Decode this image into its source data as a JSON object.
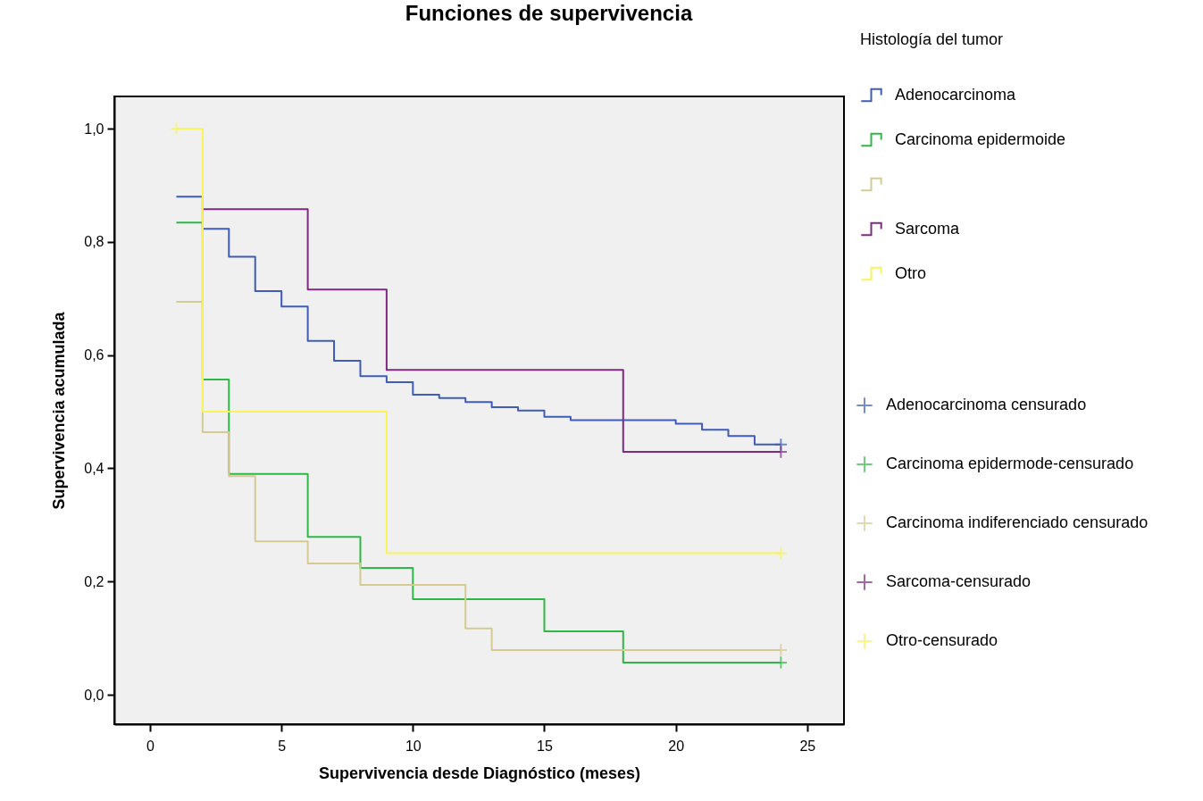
{
  "chart_data": {
    "type": "step",
    "title": "Funciones de supervivencia",
    "xlabel": "Supervivencia desde Diagnóstico (meses)",
    "ylabel": "Supervivencia acumulada",
    "legend_title": "Histología del tumor",
    "xlim": [
      -1.36,
      26.4
    ],
    "xticks": [
      0,
      5,
      10,
      15,
      20,
      25
    ],
    "ylim": [
      -0.052,
      1.057
    ],
    "yticks": [
      {
        "value": 0,
        "label": "0,0"
      },
      {
        "value": 0.2,
        "label": "0,2"
      },
      {
        "value": 0.4,
        "label": "0,4"
      },
      {
        "value": 0.6,
        "label": "0,6"
      },
      {
        "value": 0.8,
        "label": "0,8"
      },
      {
        "value": 1,
        "label": "1,0"
      }
    ],
    "grid": false,
    "legend": "right",
    "series": [
      {
        "name": "Adenocarcinoma",
        "color": "#3e5cb8",
        "x": [
          1,
          2,
          3,
          4,
          5,
          6,
          7,
          8,
          9,
          10,
          11,
          12,
          13,
          14,
          15,
          16,
          20,
          21,
          22,
          23,
          24
        ],
        "values": [
          0.88,
          0.823,
          0.774,
          0.713,
          0.686,
          0.625,
          0.59,
          0.563,
          0.552,
          0.53,
          0.524,
          0.517,
          0.508,
          0.502,
          0.491,
          0.485,
          0.479,
          0.468,
          0.457,
          0.442,
          0.442
        ]
      },
      {
        "name": "Carcinoma epidermoide",
        "color": "#2eb845",
        "x": [
          1,
          2,
          3,
          6,
          8,
          10,
          15,
          18,
          24
        ],
        "values": [
          0.834,
          0.557,
          0.39,
          0.279,
          0.224,
          0.169,
          0.112,
          0.057,
          0.057
        ]
      },
      {
        "name": null,
        "color": "#d4cb92",
        "x": [
          1,
          2,
          3,
          4,
          6,
          8,
          12,
          13,
          24
        ],
        "values": [
          0.694,
          0.464,
          0.386,
          0.271,
          0.232,
          0.194,
          0.117,
          0.079,
          0.079
        ]
      },
      {
        "name": "Sarcoma",
        "color": "#7d2a80",
        "x": [
          2,
          6,
          9,
          18,
          24
        ],
        "values": [
          0.858,
          0.716,
          0.574,
          0.429,
          0.429
        ]
      },
      {
        "name": "Otro",
        "color": "#f8f45a",
        "x": [
          1,
          2,
          9,
          24
        ],
        "values": [
          1.0,
          0.5,
          0.25,
          0.25
        ]
      },
      {
        "name": "Adenocarcinoma censurado",
        "type": "scatter",
        "marker": "cross",
        "color": "#3e5cb8",
        "x": [
          24
        ],
        "values": [
          0.442
        ]
      },
      {
        "name": "Carcinoma epidermode-censurado",
        "type": "scatter",
        "marker": "cross",
        "color": "#2eb845",
        "x": [
          24
        ],
        "values": [
          0.057
        ]
      },
      {
        "name": "Carcinoma indiferenciado censurado",
        "type": "scatter",
        "marker": "cross",
        "color": "#d4cb92",
        "x": [
          24
        ],
        "values": [
          0.079
        ]
      },
      {
        "name": "Sarcoma-censurado",
        "type": "scatter",
        "marker": "cross",
        "color": "#7d2a80",
        "x": [
          24
        ],
        "values": [
          0.429
        ]
      },
      {
        "name": "Otro-censurado",
        "type": "scatter",
        "marker": "cross",
        "color": "#f8f45a",
        "x": [
          1,
          24
        ],
        "values": [
          1.0,
          0.25
        ]
      }
    ]
  }
}
